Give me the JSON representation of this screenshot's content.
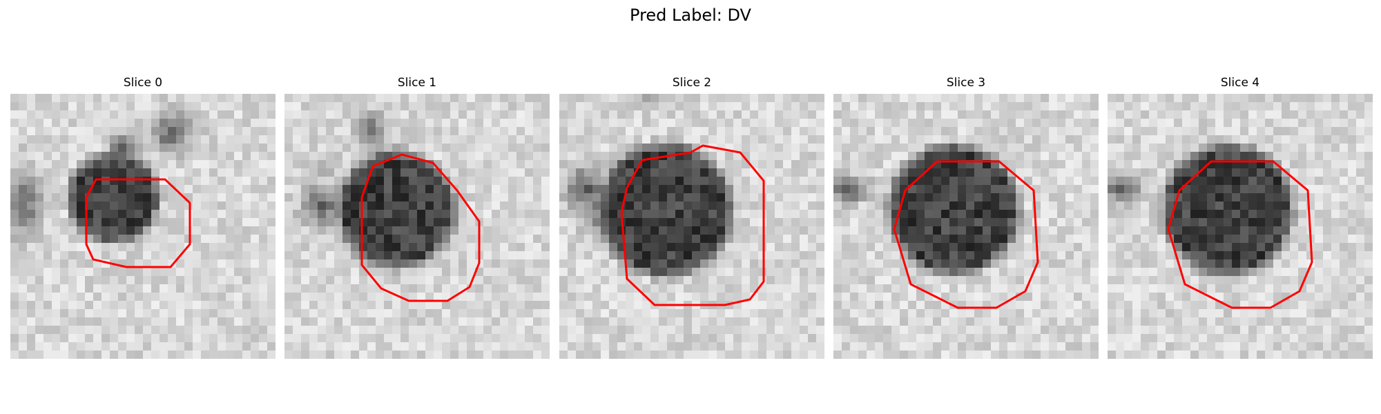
{
  "figure": {
    "title": "Pred Label: DV",
    "contour_color": "#ff0000"
  },
  "slices": [
    {
      "title": "Slice 0"
    },
    {
      "title": "Slice 1"
    },
    {
      "title": "Slice 2"
    },
    {
      "title": "Slice 3"
    },
    {
      "title": "Slice 4"
    }
  ]
}
